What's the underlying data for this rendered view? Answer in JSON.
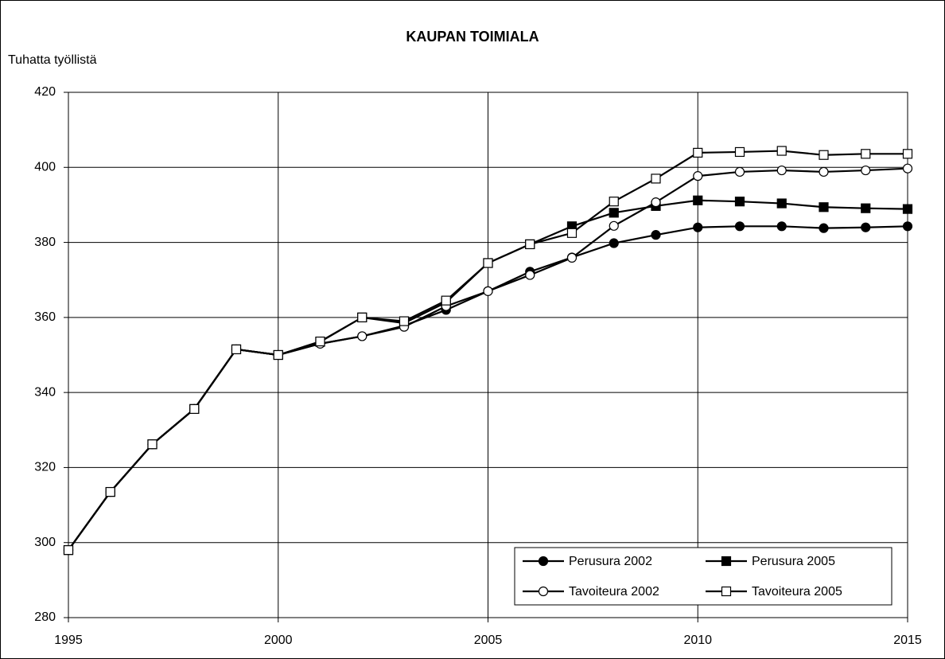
{
  "chart_data": {
    "type": "line",
    "title": "KAUPAN TOIMIALA",
    "y_label": "Tuhatta työllistä",
    "x": [
      1995,
      1996,
      1997,
      1998,
      1999,
      2000,
      2001,
      2002,
      2003,
      2004,
      2005,
      2006,
      2007,
      2008,
      2009,
      2010,
      2011,
      2012,
      2013,
      2014,
      2015
    ],
    "xlim": [
      1995,
      2015
    ],
    "xticks": [
      1995,
      2000,
      2005,
      2010,
      2015
    ],
    "ylim": [
      280,
      420
    ],
    "yticks": [
      280,
      300,
      320,
      340,
      360,
      380,
      400,
      420
    ],
    "grid": true,
    "legend": "lower right",
    "series": [
      {
        "name": "Perusura 2002",
        "color": "#000000",
        "marker": "circle",
        "marker_fill": "#000000",
        "values": [
          298,
          313.5,
          326.2,
          335.6,
          351.5,
          350,
          353,
          355,
          357.8,
          362,
          367,
          372.2,
          376,
          379.8,
          382,
          384,
          384.3,
          384.3,
          383.8,
          384,
          384.3
        ]
      },
      {
        "name": "Perusura 2005",
        "color": "#000000",
        "marker": "square",
        "marker_fill": "#000000",
        "values": [
          298,
          313.5,
          326.2,
          335.6,
          351.5,
          350,
          353.5,
          360,
          358.5,
          364,
          374.5,
          379.5,
          384.3,
          387.9,
          389.7,
          391.2,
          390.9,
          390.4,
          389.4,
          389.1,
          388.9
        ]
      },
      {
        "name": "Tavoiteura 2002",
        "color": "#000000",
        "marker": "circle",
        "marker_fill": "#ffffff",
        "values": [
          298,
          313.5,
          326.2,
          335.6,
          351.5,
          350,
          353,
          355,
          357.5,
          363,
          367,
          371.3,
          375.9,
          384.4,
          390.7,
          397.7,
          398.8,
          399.2,
          398.8,
          399.2,
          399.7
        ]
      },
      {
        "name": "Tavoiteura 2005",
        "color": "#000000",
        "marker": "square",
        "marker_fill": "#ffffff",
        "values": [
          298,
          313.5,
          326.2,
          335.6,
          351.5,
          350,
          353.6,
          360,
          359,
          364.5,
          374.5,
          379.5,
          382.5,
          390.9,
          397,
          403.9,
          404.1,
          404.4,
          403.3,
          403.6,
          403.6
        ]
      }
    ]
  }
}
